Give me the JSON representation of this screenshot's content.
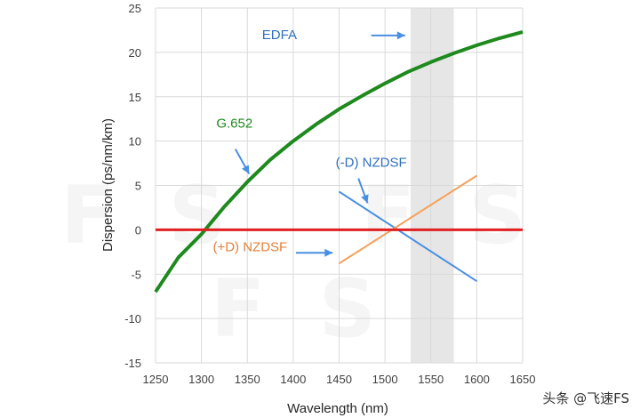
{
  "chart_data": {
    "type": "line",
    "title": "",
    "xlabel": "Wavelength (nm)",
    "ylabel": "Dispersion (ps/nm/km)",
    "xlim": [
      1250,
      1650
    ],
    "ylim": [
      -15,
      25
    ],
    "xticks": [
      1250,
      1300,
      1350,
      1400,
      1450,
      1500,
      1550,
      1600,
      1650
    ],
    "yticks": [
      -15,
      -10,
      -5,
      0,
      5,
      10,
      15,
      20,
      25
    ],
    "grid": true,
    "band": {
      "name": "EDFA",
      "x": [
        1528,
        1575
      ],
      "color": "#e6e6e6"
    },
    "series": [
      {
        "name": "G.652",
        "color": "#1e8a1e",
        "x": [
          1250,
          1275,
          1300,
          1325,
          1350,
          1375,
          1400,
          1425,
          1450,
          1475,
          1500,
          1525,
          1550,
          1575,
          1600,
          1625,
          1650
        ],
        "y": [
          -7.0,
          -3.1,
          -0.5,
          2.6,
          5.4,
          7.9,
          10.0,
          11.9,
          13.6,
          15.1,
          16.5,
          17.8,
          18.9,
          19.9,
          20.8,
          21.6,
          22.3
        ]
      },
      {
        "name": "(-D) NZDSF",
        "color": "#4a90e2",
        "x": [
          1450,
          1600
        ],
        "y": [
          4.3,
          -5.8
        ]
      },
      {
        "name": "(+D) NZDSF",
        "color": "#f5a15a",
        "x": [
          1450,
          1600
        ],
        "y": [
          -3.8,
          6.1
        ]
      },
      {
        "name": "zero dispersion",
        "color": "#e02020",
        "x": [
          1250,
          1650
        ],
        "y": [
          0,
          0
        ]
      }
    ],
    "annotations": [
      {
        "text": "EDFA",
        "color": "#2f6fbf"
      },
      {
        "text": "G.652",
        "color": "#1e8a1e"
      },
      {
        "text": "(-D) NZDSF",
        "color": "#2f6fbf"
      },
      {
        "text": "(+D) NZDSF",
        "color": "#e0803a"
      }
    ]
  },
  "watermark": "FS FS FS",
  "credit": "头条 @飞速FS"
}
